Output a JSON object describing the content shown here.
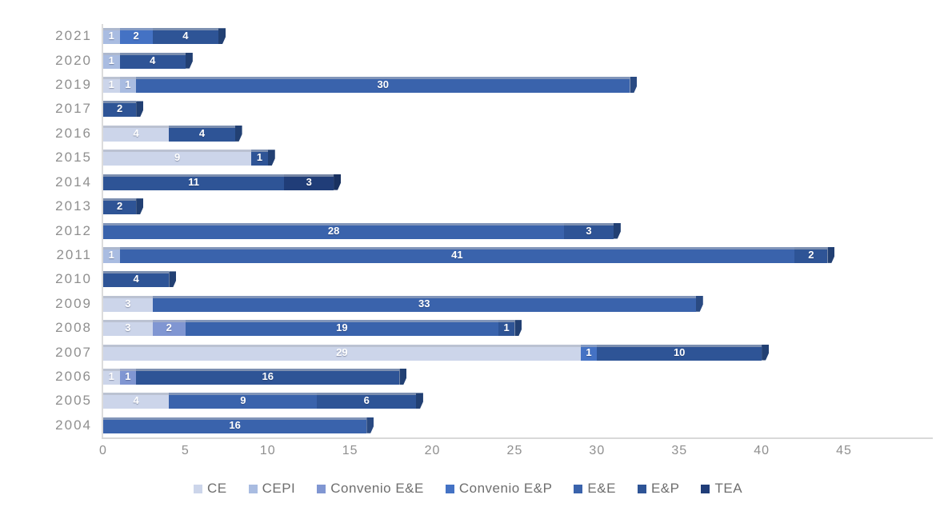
{
  "page": {
    "background": "#ffffff"
  },
  "chart_data": {
    "type": "bar",
    "orientation": "horizontal",
    "stacked": true,
    "title": "",
    "xlabel": "",
    "ylabel": "",
    "xlim": [
      0,
      45
    ],
    "x_ticks": [
      0,
      5,
      10,
      15,
      20,
      25,
      30,
      35,
      40,
      45
    ],
    "grid": false,
    "legend_position": "bottom",
    "categories": [
      "2021",
      "2020",
      "2019",
      "2017",
      "2016",
      "2015",
      "2014",
      "2013",
      "2012",
      "2011",
      "2010",
      "2009",
      "2008",
      "2007",
      "2006",
      "2005",
      "2004"
    ],
    "series": [
      {
        "name": "CE",
        "color": "#ccd5ea"
      },
      {
        "name": "CEPI",
        "color": "#a9bce1"
      },
      {
        "name": "Convenio E&E",
        "color": "#8096d2"
      },
      {
        "name": "Convenio E&P",
        "color": "#4472c4"
      },
      {
        "name": "E&E",
        "color": "#3a63ac"
      },
      {
        "name": "E&P",
        "color": "#2e5496"
      },
      {
        "name": "TEA",
        "color": "#203d78"
      }
    ],
    "rows": [
      {
        "category": "2021",
        "segments": [
          [
            "CEPI",
            1
          ],
          [
            "Convenio E&P",
            2
          ],
          [
            "E&P",
            4
          ]
        ]
      },
      {
        "category": "2020",
        "segments": [
          [
            "CEPI",
            1
          ],
          [
            "E&P",
            4
          ]
        ]
      },
      {
        "category": "2019",
        "segments": [
          [
            "CE",
            1
          ],
          [
            "CEPI",
            1
          ],
          [
            "E&E",
            30
          ]
        ]
      },
      {
        "category": "2017",
        "segments": [
          [
            "E&P",
            2
          ]
        ]
      },
      {
        "category": "2016",
        "segments": [
          [
            "CE",
            4
          ],
          [
            "E&P",
            4
          ]
        ]
      },
      {
        "category": "2015",
        "segments": [
          [
            "CE",
            9
          ],
          [
            "E&P",
            1
          ]
        ]
      },
      {
        "category": "2014",
        "segments": [
          [
            "E&P",
            11
          ],
          [
            "TEA",
            3
          ]
        ]
      },
      {
        "category": "2013",
        "segments": [
          [
            "E&P",
            2
          ]
        ]
      },
      {
        "category": "2012",
        "segments": [
          [
            "E&E",
            28
          ],
          [
            "E&P",
            3
          ]
        ]
      },
      {
        "category": "2011",
        "segments": [
          [
            "CEPI",
            1
          ],
          [
            "E&E",
            41
          ],
          [
            "E&P",
            2
          ]
        ]
      },
      {
        "category": "2010",
        "segments": [
          [
            "E&P",
            4
          ]
        ]
      },
      {
        "category": "2009",
        "segments": [
          [
            "CE",
            3
          ],
          [
            "E&E",
            33
          ]
        ]
      },
      {
        "category": "2008",
        "segments": [
          [
            "CE",
            3
          ],
          [
            "Convenio E&E",
            2
          ],
          [
            "E&E",
            19
          ],
          [
            "E&P",
            1
          ]
        ]
      },
      {
        "category": "2007",
        "segments": [
          [
            "CE",
            29
          ],
          [
            "Convenio E&P",
            1
          ],
          [
            "E&P",
            10
          ]
        ]
      },
      {
        "category": "2006",
        "segments": [
          [
            "CE",
            1
          ],
          [
            "Convenio E&E",
            1
          ],
          [
            "E&P",
            16
          ]
        ]
      },
      {
        "category": "2005",
        "segments": [
          [
            "CE",
            4
          ],
          [
            "E&E",
            9
          ],
          [
            "E&P",
            6
          ]
        ]
      },
      {
        "category": "2004",
        "segments": [
          [
            "E&E",
            16
          ]
        ]
      }
    ]
  }
}
